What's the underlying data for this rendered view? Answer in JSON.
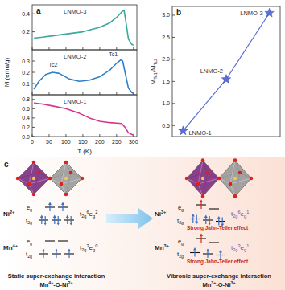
{
  "chart_data": [
    {
      "type": "line",
      "title": "a",
      "x": [
        5,
        30,
        60,
        100,
        150,
        200,
        230,
        250,
        265,
        272,
        278,
        285,
        295,
        300
      ],
      "xlim": [
        0,
        310
      ],
      "xticks": [
        0,
        50,
        100,
        150,
        200,
        250,
        300
      ],
      "ylim": [
        0,
        0.5
      ],
      "yticks": [
        0.2,
        0.4
      ],
      "tick_labels": "y",
      "series": [
        {
          "name": "LNMO-3",
          "color": "#3aa89a",
          "values": [
            0.13,
            0.14,
            0.155,
            0.175,
            0.2,
            0.25,
            0.3,
            0.36,
            0.42,
            0.44,
            0.3,
            0.12,
            0.06,
            0.05
          ]
        }
      ]
    },
    {
      "type": "line",
      "x": [
        5,
        20,
        40,
        60,
        80,
        110,
        140,
        170,
        200,
        230,
        250,
        262,
        268,
        275,
        285,
        295,
        300
      ],
      "xlim": [
        0,
        310
      ],
      "xticks": [
        0,
        50,
        100,
        150,
        200,
        250,
        300
      ],
      "ylim": [
        0,
        0.4
      ],
      "yticks": [
        0.1,
        0.2,
        0.3
      ],
      "tick_labels": "y",
      "y_label": "M (emu/g)",
      "annotations": [
        {
          "text": "Tc2",
          "x": 62,
          "y": 0.25
        },
        {
          "text": "Tc1",
          "x": 240,
          "y": 0.34
        }
      ],
      "series": [
        {
          "name": "LNMO-2",
          "color": "#2f80c8",
          "values": [
            0.05,
            0.12,
            0.18,
            0.2,
            0.19,
            0.14,
            0.12,
            0.13,
            0.16,
            0.22,
            0.28,
            0.31,
            0.3,
            0.2,
            0.06,
            0.02,
            0.01
          ]
        }
      ]
    },
    {
      "type": "line",
      "x": [
        5,
        30,
        60,
        100,
        140,
        170,
        200,
        230,
        250,
        265,
        275,
        285,
        300
      ],
      "xlim": [
        0,
        310
      ],
      "xticks": [
        0,
        50,
        100,
        150,
        200,
        250,
        300
      ],
      "ylim": [
        0,
        0.9
      ],
      "yticks": [
        {
          "value": 0,
          "label": "0.0"
        },
        0.2,
        0.4,
        0.6,
        0.8
      ],
      "x_label": "T (K)",
      "series": [
        {
          "name": "LNMO-1",
          "color": "#d8338a",
          "values": [
            0.72,
            0.7,
            0.66,
            0.6,
            0.5,
            0.4,
            0.33,
            0.3,
            0.29,
            0.28,
            0.2,
            0.08,
            0.03
          ]
        }
      ]
    },
    {
      "type": "line",
      "title": "b",
      "categories": [
        "LNMO-1",
        "LNMO-2",
        "LNMO-3"
      ],
      "values": [
        0.38,
        1.55,
        3.05
      ],
      "color": "#5b6fd6",
      "marker": "star",
      "ylim": [
        0.25,
        3.2
      ],
      "yticks": [
        0.5,
        {
          "value": 1,
          "label": "1.0"
        },
        1.5,
        {
          "value": 2,
          "label": "2.0"
        },
        2.5,
        {
          "value": 3,
          "label": "3.0"
        }
      ],
      "tick_labels": "y",
      "y_label": [
        {
          "text": "M"
        },
        {
          "sub": "Tc1"
        },
        {
          "text": "/M"
        },
        {
          "sub": "Tc2"
        }
      ]
    }
  ],
  "diagram": {
    "label": "c",
    "states": [
      {
        "caption": "Static super-exchange interaction",
        "bond": [
          {
            "text": "Mn"
          },
          {
            "sup": "4+"
          },
          {
            "text": "-O-Ni"
          },
          {
            "sup": "2+"
          }
        ],
        "config_color": "#222222",
        "ions": [
          {
            "ion": [
              {
                "text": "Ni"
              },
              {
                "sup": "2+"
              }
            ],
            "levels": [
              {
                "label": [
                  {
                    "text": "e"
                  },
                  {
                    "sub": "g"
                  }
                ],
                "orbitals": 2,
                "electrons": 2,
                "color": "#3b6fc0"
              },
              {
                "label": [
                  {
                    "text": "t"
                  },
                  {
                    "sub": "2g"
                  }
                ],
                "orbitals": 3,
                "electrons": 6,
                "color": "#3b6fc0"
              }
            ],
            "config": [
              {
                "text": "t"
              },
              {
                "sub": "2g"
              },
              {
                "sup": "6"
              },
              {
                "text": "e"
              },
              {
                "sub": "g"
              },
              {
                "sup": "2"
              }
            ]
          },
          {
            "ion": [
              {
                "text": "Mn"
              },
              {
                "sup": "4+"
              }
            ],
            "levels": [
              {
                "label": [
                  {
                    "text": "e"
                  },
                  {
                    "sub": "g"
                  }
                ],
                "orbitals": 2,
                "electrons": 0,
                "color": "#3b6fc0"
              },
              {
                "label": [
                  {
                    "text": "t"
                  },
                  {
                    "sub": "2g"
                  }
                ],
                "orbitals": 3,
                "electrons": 3,
                "color": "#3b6fc0"
              }
            ],
            "config": [
              {
                "text": "t"
              },
              {
                "sub": "2g"
              },
              {
                "sup": "3"
              },
              {
                "text": "e"
              },
              {
                "sub": "g"
              },
              {
                "sup": "0"
              }
            ]
          }
        ]
      },
      {
        "caption": "Vibronic super-exchange interaction",
        "bond": [
          {
            "text": "Mn"
          },
          {
            "sup": "3+"
          },
          {
            "text": "-O-Ni"
          },
          {
            "sup": "3+"
          }
        ],
        "config_color": "#7b3fb5",
        "ions": [
          {
            "ion": [
              {
                "text": "Ni"
              },
              {
                "sup": "3+"
              }
            ],
            "levels": [
              {
                "label": [
                  {
                    "text": "e"
                  },
                  {
                    "sub": "g"
                  }
                ],
                "orbitals": 2,
                "electrons": 1,
                "color": "#e0201b"
              },
              {
                "label": [
                  {
                    "text": "t"
                  },
                  {
                    "sub": "2g"
                  }
                ],
                "orbitals": 3,
                "electrons": 6,
                "color": "#3b6fc0"
              }
            ],
            "config": [
              {
                "text": "t"
              },
              {
                "sub": "2g"
              },
              {
                "sup": "6"
              },
              {
                "text": "e"
              },
              {
                "sub": "g"
              },
              {
                "sup": "1"
              }
            ],
            "note": "Strong Jahn-Teller effect"
          },
          {
            "ion": [
              {
                "text": "Mn"
              },
              {
                "sup": "3+"
              }
            ],
            "levels": [
              {
                "label": [
                  {
                    "text": "e"
                  },
                  {
                    "sub": "g"
                  }
                ],
                "orbitals": 2,
                "electrons": 1,
                "color": "#e0201b"
              },
              {
                "label": [
                  {
                    "text": "t"
                  },
                  {
                    "sub": "2g"
                  }
                ],
                "orbitals": 3,
                "electrons": 3,
                "color": "#3b6fc0"
              }
            ],
            "config": [
              {
                "text": "t"
              },
              {
                "sub": "2g"
              },
              {
                "sup": "3"
              },
              {
                "text": "e"
              },
              {
                "sub": "g"
              },
              {
                "sup": "1"
              }
            ],
            "note": "Strong Jahn-Teller effect"
          }
        ]
      }
    ]
  }
}
